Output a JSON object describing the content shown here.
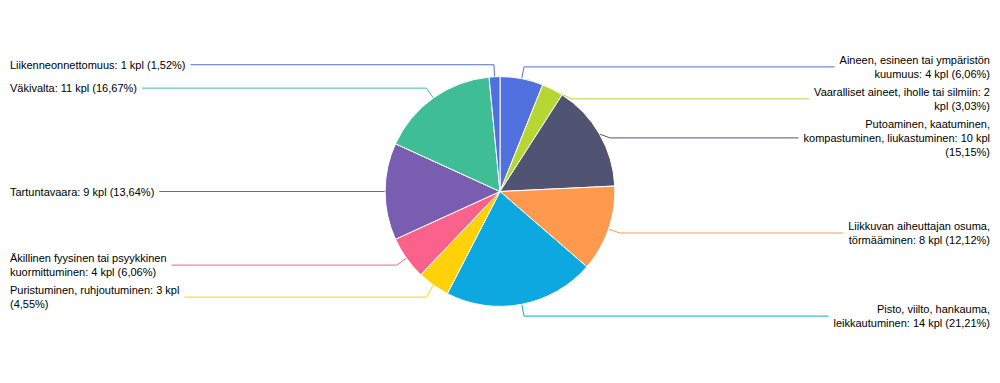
{
  "chart_data": {
    "type": "pie",
    "categories": [
      "Aineen, esineen tai ympäristön\nkuumuus: 4 kpl (6,06%)",
      "Vaaralliset aineet, iholle tai silmiin: 2\nkpl (3,03%)",
      "Putoaminen, kaatuminen,\nkompastuminen, liukastuminen: 10 kpl\n(15,15%)",
      "Liikkuvan aiheuttajan osuma,\ntörmääminen: 8 kpl (12,12%)",
      "Pisto, viilto, hankauma,\nleikkautuminen: 14 kpl (21,21%)",
      "Puristuminen, ruhjoutuminen: 3 kpl\n(4,55%)",
      "Äkillinen fyysinen tai psyykkinen\nkuormittuminen: 4 kpl (6,06%)",
      "Tartuntavaara: 9 kpl (13,64%)",
      "Väkivalta: 11 kpl (16,67%)",
      "Liikenneonnettomuus: 1 kpl (1,52%)"
    ],
    "values": [
      4,
      2,
      10,
      8,
      14,
      3,
      4,
      9,
      11,
      1
    ]
  }
}
